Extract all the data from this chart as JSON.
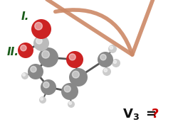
{
  "bg_color": "#ffffff",
  "label_I_text": "I.",
  "label_II_text": "II.",
  "label_color": "#1a5c1a",
  "label_fontsize": 11,
  "label_fontweight": "bold",
  "v3_fontsize": 13,
  "v3_color": "#111111",
  "v3_q_color": "#cc0000",
  "arrow_color": "#cc8866",
  "figw": 2.5,
  "figh": 1.89,
  "dpi": 100,
  "atoms": {
    "C_color": "#888888",
    "C_light_color": "#bbbbbb",
    "O_color": "#cc2222",
    "H_color": "#cccccc",
    "bond_color": "#555555"
  }
}
